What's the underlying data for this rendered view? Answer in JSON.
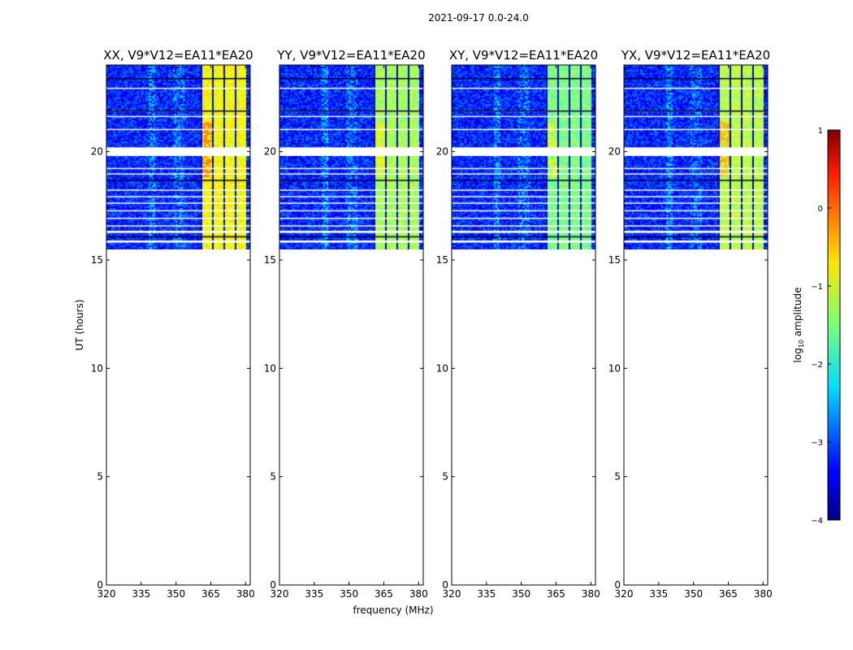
{
  "figure_title": "2021-09-17 0.0-24.0",
  "colors": {
    "gap_white": "#ffffff",
    "axes": "#000000"
  },
  "chart_data": [
    {
      "type": "heatmap",
      "title": "XX, V9*V12=EA11*EA20",
      "xlabel": "",
      "ylabel": "UT (hours)",
      "xlim": [
        320,
        382
      ],
      "ylim": [
        0,
        24
      ],
      "xticks": [
        320,
        335,
        350,
        365,
        380
      ],
      "yticks": [
        0,
        5,
        10,
        15,
        20
      ],
      "data_extent_ut": [
        15.5,
        24.0
      ],
      "high_amplitude_band_mhz": [
        360,
        380
      ],
      "approx_log10_amplitude": {
        "background": -3.2,
        "band": -0.9,
        "band_peak": -0.3
      }
    },
    {
      "type": "heatmap",
      "title": "YY, V9*V12=EA11*EA20",
      "xlabel": "frequency (MHz)",
      "ylabel": "",
      "xlim": [
        320,
        382
      ],
      "ylim": [
        0,
        24
      ],
      "xticks": [
        320,
        335,
        350,
        365,
        380
      ],
      "yticks": [
        0,
        5,
        10,
        15,
        20
      ],
      "data_extent_ut": [
        15.5,
        24.0
      ],
      "high_amplitude_band_mhz": [
        360,
        380
      ],
      "approx_log10_amplitude": {
        "background": -3.2,
        "band": -1.3,
        "band_peak": -0.8
      }
    },
    {
      "type": "heatmap",
      "title": "XY, V9*V12=EA11*EA20",
      "xlabel": "",
      "ylabel": "",
      "xlim": [
        320,
        382
      ],
      "ylim": [
        0,
        24
      ],
      "xticks": [
        320,
        335,
        350,
        365,
        380
      ],
      "yticks": [
        0,
        5,
        10,
        15,
        20
      ],
      "data_extent_ut": [
        15.5,
        24.0
      ],
      "high_amplitude_band_mhz": [
        360,
        380
      ],
      "approx_log10_amplitude": {
        "background": -3.2,
        "band": -1.5,
        "band_peak": -1.0
      }
    },
    {
      "type": "heatmap",
      "title": "YX, V9*V12=EA11*EA20",
      "xlabel": "",
      "ylabel": "",
      "xlim": [
        320,
        382
      ],
      "ylim": [
        0,
        24
      ],
      "xticks": [
        320,
        335,
        350,
        365,
        380
      ],
      "yticks": [
        0,
        5,
        10,
        15,
        20
      ],
      "data_extent_ut": [
        15.5,
        24.0
      ],
      "high_amplitude_band_mhz": [
        360,
        380
      ],
      "approx_log10_amplitude": {
        "background": -3.2,
        "band": -1.2,
        "band_peak": -0.5
      }
    }
  ],
  "colorbar": {
    "label": "log",
    "label_sub": "10",
    "label_rest": " amplitude",
    "range": [
      -4,
      1
    ],
    "ticks": [
      1,
      0,
      -1,
      -2,
      -3,
      -4
    ],
    "tick_labels": [
      "1",
      "0",
      "−1",
      "−2",
      "−3",
      "−4"
    ],
    "colormap": "jet"
  },
  "gaps": {
    "white_ut_bands": [
      [
        19.8,
        20.2
      ],
      [
        15.8,
        15.9
      ],
      [
        16.25,
        16.35
      ],
      [
        16.55,
        16.6
      ],
      [
        16.9,
        16.95
      ],
      [
        17.25,
        17.3
      ],
      [
        17.6,
        17.65
      ],
      [
        17.9,
        17.95
      ],
      [
        18.2,
        18.25
      ],
      [
        18.95,
        19.0
      ],
      [
        19.2,
        19.25
      ],
      [
        21.0,
        21.05
      ],
      [
        21.6,
        21.65
      ],
      [
        21.85,
        21.9
      ],
      [
        22.9,
        22.95
      ]
    ],
    "dark_ut_lines": [
      16.1,
      18.7,
      21.9,
      23.4
    ]
  }
}
